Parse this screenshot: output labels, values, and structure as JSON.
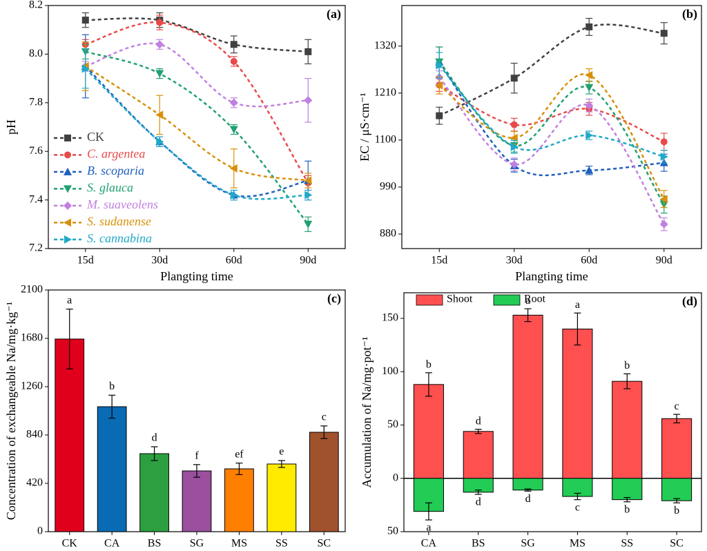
{
  "chart_data": [
    {
      "type": "line",
      "panel_label": "(a)",
      "x_label": "Plangting time",
      "y_label": "pH",
      "categories": [
        "15d",
        "30d",
        "60d",
        "90d"
      ],
      "ylim": [
        7.2,
        8.2
      ],
      "yticks": [
        7.2,
        7.4,
        7.6,
        7.8,
        {
          "value": 8,
          "label": "8.0"
        },
        8.2
      ],
      "legend_position": "lower left",
      "series": [
        {
          "name": "CK",
          "color": "#404040",
          "marker": "square",
          "font_style": "normal",
          "values": [
            8.14,
            8.14,
            8.04,
            8.01
          ],
          "errors": [
            0.03,
            0.03,
            0.035,
            0.05
          ]
        },
        {
          "name": "C. argentea",
          "color": "#e84a4a",
          "marker": "circle",
          "font_style": "italic",
          "values": [
            8.04,
            8.13,
            7.97,
            7.47
          ],
          "errors": [
            0.02,
            0.03,
            0.02,
            0.03
          ]
        },
        {
          "name": "B. scoparia",
          "color": "#1f5fbf",
          "marker": "triangle-up",
          "font_style": "italic",
          "values": [
            7.95,
            7.64,
            7.42,
            7.48
          ],
          "errors": [
            0.13,
            0.02,
            0.02,
            0.08
          ]
        },
        {
          "name": "S. glauca",
          "color": "#20a070",
          "marker": "triangle-down",
          "font_style": "italic",
          "values": [
            8.01,
            7.92,
            7.69,
            7.3
          ],
          "errors": [
            0.03,
            0.02,
            0.02,
            0.03
          ]
        },
        {
          "name": "M. suaveolens",
          "color": "#c080e0",
          "marker": "diamond",
          "font_style": "italic",
          "values": [
            7.95,
            8.04,
            7.8,
            7.81
          ],
          "errors": [
            0.02,
            0.02,
            0.02,
            0.09
          ]
        },
        {
          "name": "S. sudanense",
          "color": "#d8900a",
          "marker": "triangle-left",
          "font_style": "italic",
          "values": [
            7.95,
            7.75,
            7.53,
            7.48
          ],
          "errors": [
            0.1,
            0.08,
            0.08,
            0.03
          ]
        },
        {
          "name": "S. cannabina",
          "color": "#20a8c8",
          "marker": "triangle-right",
          "font_style": "italic",
          "values": [
            7.94,
            7.64,
            7.42,
            7.42
          ],
          "errors": [
            0.08,
            0.02,
            0.02,
            0.02
          ]
        }
      ]
    },
    {
      "type": "line",
      "panel_label": "(b)",
      "x_label": "Plangting time",
      "y_label": "EC / μS·cm⁻¹",
      "categories": [
        "15d",
        "30d",
        "60d",
        "90d"
      ],
      "ylim": [
        846,
        1415
      ],
      "yticks": [
        880,
        990,
        1100,
        1210,
        1320
      ],
      "series": [
        {
          "name": "CK",
          "color": "#404040",
          "marker": "square",
          "values": [
            1157,
            1245,
            1365,
            1350
          ],
          "errors": [
            20,
            35,
            20,
            25
          ]
        },
        {
          "name": "C. argentea",
          "color": "#e84a4a",
          "marker": "circle",
          "values": [
            1229,
            1136,
            1173,
            1096
          ],
          "errors": [
            15,
            15,
            15,
            20
          ]
        },
        {
          "name": "B. scoparia",
          "color": "#1f5fbf",
          "marker": "triangle-up",
          "values": [
            1283,
            1040,
            1029,
            1047
          ],
          "errors": [
            35,
            15,
            10,
            20
          ]
        },
        {
          "name": "S. glauca",
          "color": "#20a070",
          "marker": "triangle-down",
          "values": [
            1283,
            1087,
            1223,
            949
          ],
          "errors": [
            35,
            15,
            15,
            20
          ]
        },
        {
          "name": "M. suaveolens",
          "color": "#c080e0",
          "marker": "diamond",
          "values": [
            1247,
            1043,
            1181,
            903
          ],
          "errors": [
            15,
            15,
            15,
            15
          ]
        },
        {
          "name": "S. sudanense",
          "color": "#d8900a",
          "marker": "triangle-left",
          "values": [
            1228,
            1105,
            1252,
            962
          ],
          "errors": [
            20,
            15,
            15,
            20
          ]
        },
        {
          "name": "S. cannabina",
          "color": "#20a8c8",
          "marker": "triangle-right",
          "values": [
            1275,
            1084,
            1111,
            1061
          ],
          "errors": [
            30,
            15,
            10,
            15
          ]
        }
      ]
    },
    {
      "type": "bar",
      "panel_label": "(c)",
      "y_label": "Concentration of exchangeable Na/mg·kg⁻¹",
      "categories": [
        "CK",
        "CA",
        "BS",
        "SG",
        "MS",
        "SS",
        "SC"
      ],
      "ylim": [
        0,
        2100
      ],
      "yticks": [
        0,
        420,
        840,
        1260,
        1680,
        2100
      ],
      "values": [
        1674,
        1086,
        678,
        528,
        546,
        588,
        864
      ],
      "errors": [
        260,
        100,
        60,
        55,
        50,
        30,
        55
      ],
      "letters": [
        "a",
        "b",
        "d",
        "f",
        "ef",
        "e",
        "c"
      ],
      "colors": [
        "#e0001b",
        "#0a6bb5",
        "#2ca040",
        "#9a4f9f",
        "#ff7f00",
        "#ffeb00",
        "#a0522d"
      ]
    },
    {
      "type": "stacked_bar",
      "panel_label": "(d)",
      "y_label": "Accumulation of Na/mg·pot⁻¹",
      "categories": [
        "CA",
        "BS",
        "SG",
        "MS",
        "SS",
        "SC"
      ],
      "ylim": [
        -50,
        174
      ],
      "yticks": [
        {
          "value": -50,
          "label": "50"
        },
        0,
        50,
        100,
        150
      ],
      "legend_position": "upper left",
      "series": [
        {
          "name": "Shoot",
          "color": "#ff5050",
          "values": [
            88,
            44,
            153,
            140,
            91,
            56
          ],
          "errors": [
            11,
            2,
            6,
            15,
            7,
            4
          ],
          "letters": [
            "b",
            "d",
            "a",
            "a",
            "b",
            "c"
          ]
        },
        {
          "name": "Root",
          "color": "#22cc55",
          "values": [
            -31,
            -13,
            -11,
            -17,
            -20,
            -21
          ],
          "errors": [
            8,
            2,
            1,
            3,
            2,
            2
          ],
          "letters": [
            "a",
            "d",
            "d",
            "c",
            "b",
            "b"
          ]
        }
      ]
    }
  ]
}
